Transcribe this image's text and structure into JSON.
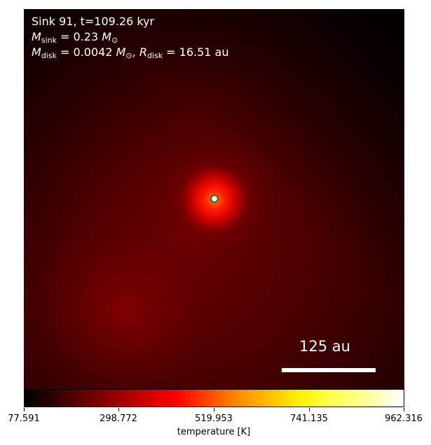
{
  "annotation": {
    "title": "Sink 91, t=109.26 kyr",
    "sink_mass_symbol": "M",
    "sink_mass_subscript": "sink",
    "sink_mass_value": " = 0.23 ",
    "sink_mass_unit_symbol": "M",
    "sink_mass_unit_subscript": "⊙",
    "disk_mass_symbol": "M",
    "disk_mass_subscript": "disk",
    "disk_mass_value": " = 0.0042 ",
    "disk_mass_unit_symbol": "M",
    "disk_mass_unit_subscript": "⊙",
    "disk_separator": ", ",
    "disk_radius_symbol": "R",
    "disk_radius_subscript": "disk",
    "disk_radius_value": " = 16.51 au"
  },
  "scalebar": {
    "label": "125 au"
  },
  "colorbar": {
    "label": "temperature [K]",
    "ticks": [
      "77.591",
      "298.772",
      "519.953",
      "741.135",
      "962.316"
    ],
    "colors": [
      "#000000",
      "#cc0000",
      "#ff0000",
      "#ffff00",
      "#ffffff"
    ]
  },
  "map_colors": {
    "background_dark": "#1a0000",
    "body": "#5a0000",
    "hot_core": "#ff2200",
    "sink_marker_fill": "#ffffff",
    "sink_marker_edge": "#556633"
  }
}
